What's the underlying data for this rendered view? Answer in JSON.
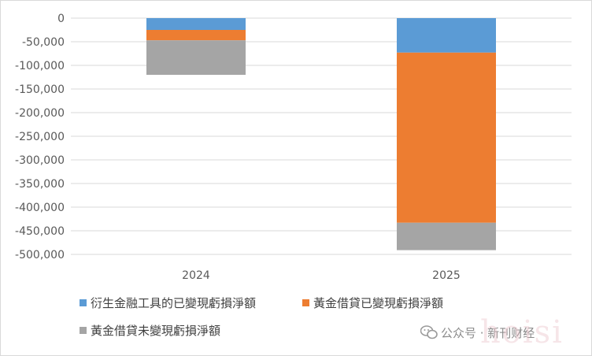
{
  "chart_data": {
    "type": "bar",
    "stacked": true,
    "categories": [
      "2024",
      "2025"
    ],
    "series": [
      {
        "name": "衍生金融工具的已變現虧損淨額",
        "values": [
          -25000,
          -73000
        ],
        "color": "#5b9bd5"
      },
      {
        "name": "黃金借貸已變現虧損淨額",
        "values": [
          -22000,
          -360000
        ],
        "color": "#ed7d31"
      },
      {
        "name": "黃金借貸未變現虧損淨額",
        "values": [
          -73000,
          -58000
        ],
        "color": "#a5a5a5"
      }
    ],
    "ylim": [
      -500000,
      0
    ],
    "yticks": [
      0,
      -50000,
      -100000,
      -150000,
      -200000,
      -250000,
      -300000,
      -350000,
      -400000,
      -450000,
      -500000
    ],
    "ytick_labels": [
      "0",
      "-50,000",
      "-100,000",
      "-150,000",
      "-200,000",
      "-250,000",
      "-300,000",
      "-350,000",
      "-400,000",
      "-450,000",
      "-500,000"
    ],
    "grid": true,
    "legend_position": "bottom",
    "title": "",
    "xlabel": "",
    "ylabel": ""
  },
  "watermark": {
    "text": "公众号 · 新刊财经",
    "stamp": "hoisi"
  }
}
